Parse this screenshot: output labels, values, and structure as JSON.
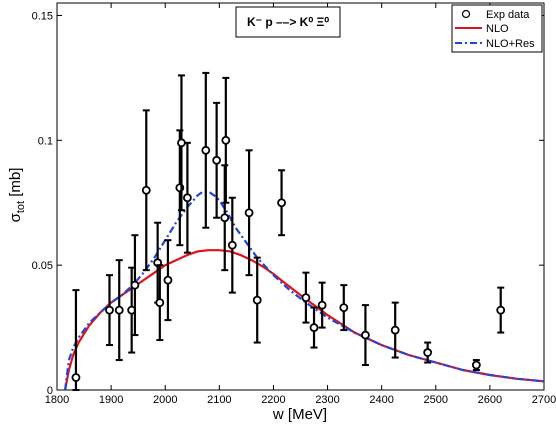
{
  "chart_data": {
    "type": "scatter",
    "title_reaction": "K⁻ p ––> K⁰ Ξ⁰",
    "xlabel": "w [MeV]",
    "ylabel_main": "σ",
    "ylabel_sub": "tot",
    "ylabel_unit": " [mb]",
    "xlim": [
      1800,
      2700
    ],
    "ylim": [
      0,
      0.155
    ],
    "xticks": [
      1800,
      1900,
      2000,
      2100,
      2200,
      2300,
      2400,
      2500,
      2600,
      2700
    ],
    "yticks": [
      0,
      0.05,
      0.1,
      0.15
    ],
    "ytick_labels": [
      "0",
      "0.05",
      "0.1",
      "0.15"
    ],
    "grid": false,
    "legend_position": "top-right",
    "legend": [
      {
        "label": "Exp data",
        "style": "marker",
        "color": "#000000"
      },
      {
        "label": "NLO",
        "style": "solid",
        "color": "#e3121a"
      },
      {
        "label": "NLO+Res",
        "style": "dashdot",
        "color": "#1f45e0"
      }
    ],
    "exp_data": [
      {
        "x": 1835,
        "y": 0.005,
        "err": 0.035
      },
      {
        "x": 1897,
        "y": 0.032,
        "err": 0.014
      },
      {
        "x": 1915,
        "y": 0.032,
        "err": 0.02
      },
      {
        "x": 1938,
        "y": 0.032,
        "err": 0.017
      },
      {
        "x": 1944,
        "y": 0.042,
        "err": 0.02
      },
      {
        "x": 1965,
        "y": 0.08,
        "err": 0.032
      },
      {
        "x": 1986,
        "y": 0.051,
        "err": 0.016
      },
      {
        "x": 1990,
        "y": 0.035,
        "err": 0.015
      },
      {
        "x": 2005,
        "y": 0.044,
        "err": 0.016
      },
      {
        "x": 2027,
        "y": 0.081,
        "err": 0.023
      },
      {
        "x": 2030,
        "y": 0.099,
        "err": 0.027
      },
      {
        "x": 2041,
        "y": 0.077,
        "err": 0.022
      },
      {
        "x": 2075,
        "y": 0.096,
        "err": 0.031
      },
      {
        "x": 2095,
        "y": 0.092,
        "err": 0.023
      },
      {
        "x": 2110,
        "y": 0.069,
        "err": 0.021
      },
      {
        "x": 2112,
        "y": 0.1,
        "err": 0.025
      },
      {
        "x": 2124,
        "y": 0.058,
        "err": 0.019
      },
      {
        "x": 2155,
        "y": 0.071,
        "err": 0.025
      },
      {
        "x": 2170,
        "y": 0.036,
        "err": 0.017
      },
      {
        "x": 2215,
        "y": 0.075,
        "err": 0.013
      },
      {
        "x": 2260,
        "y": 0.037,
        "err": 0.01
      },
      {
        "x": 2275,
        "y": 0.025,
        "err": 0.008
      },
      {
        "x": 2290,
        "y": 0.034,
        "err": 0.009
      },
      {
        "x": 2330,
        "y": 0.033,
        "err": 0.009
      },
      {
        "x": 2370,
        "y": 0.022,
        "err": 0.012
      },
      {
        "x": 2425,
        "y": 0.024,
        "err": 0.011
      },
      {
        "x": 2485,
        "y": 0.015,
        "err": 0.004
      },
      {
        "x": 2575,
        "y": 0.01,
        "err": 0.002
      },
      {
        "x": 2620,
        "y": 0.032,
        "err": 0.009
      }
    ],
    "series": [
      {
        "name": "NLO",
        "x": [
          1815,
          1822,
          1830,
          1840,
          1860,
          1880,
          1900,
          1920,
          1940,
          1960,
          1980,
          2000,
          2020,
          2040,
          2060,
          2080,
          2100,
          2120,
          2140,
          2160,
          2180,
          2200,
          2220,
          2250,
          2300,
          2350,
          2400,
          2450,
          2500,
          2550,
          2600,
          2650,
          2700
        ],
        "y": [
          0,
          0.008,
          0.014,
          0.019,
          0.026,
          0.031,
          0.035,
          0.038,
          0.041,
          0.044,
          0.047,
          0.05,
          0.052,
          0.054,
          0.0555,
          0.056,
          0.056,
          0.0555,
          0.054,
          0.052,
          0.0495,
          0.0465,
          0.043,
          0.038,
          0.03,
          0.023,
          0.018,
          0.014,
          0.011,
          0.008,
          0.006,
          0.0045,
          0.0035
        ]
      },
      {
        "name": "NLO+Res",
        "x": [
          1815,
          1822,
          1830,
          1840,
          1860,
          1880,
          1900,
          1920,
          1940,
          1960,
          1980,
          2000,
          2020,
          2040,
          2060,
          2070,
          2080,
          2090,
          2100,
          2115,
          2130,
          2150,
          2170,
          2200,
          2230,
          2260,
          2300,
          2350,
          2400,
          2450,
          2500,
          2550,
          2600,
          2650,
          2700
        ],
        "y": [
          0,
          0.012,
          0.017,
          0.021,
          0.027,
          0.031,
          0.035,
          0.038,
          0.042,
          0.047,
          0.053,
          0.06,
          0.067,
          0.073,
          0.078,
          0.0795,
          0.0795,
          0.078,
          0.076,
          0.071,
          0.065,
          0.059,
          0.053,
          0.046,
          0.04,
          0.035,
          0.029,
          0.023,
          0.018,
          0.014,
          0.011,
          0.008,
          0.006,
          0.0045,
          0.0035
        ]
      }
    ]
  }
}
